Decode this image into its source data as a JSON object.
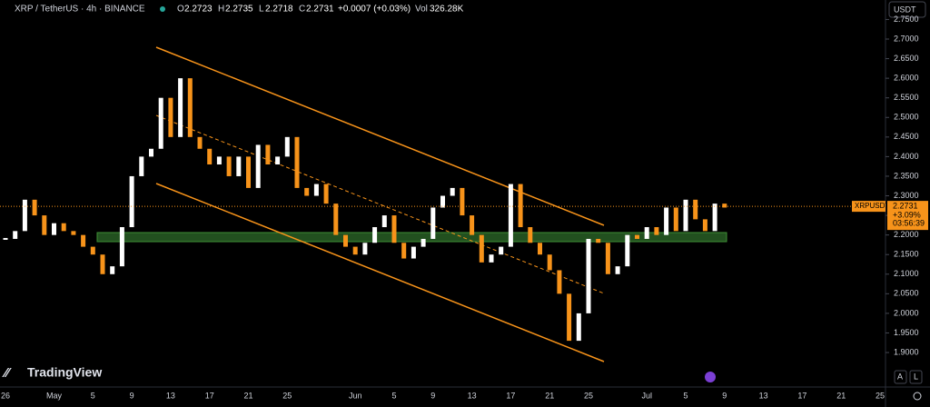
{
  "header": {
    "symbol": "XRP / TetherUS · 4h · BINANCE",
    "o_label": "O",
    "open": "2.2723",
    "h_label": "H",
    "high": "2.2735",
    "l_label": "L",
    "low": "2.2718",
    "c_label": "C",
    "close": "2.2731",
    "change": "+0.0007 (+0.03%)",
    "vol_label": "Vol",
    "volume": "326.28K"
  },
  "currency": "USDT",
  "price_label": {
    "symbol": "XRPUSDT",
    "price": "2.2731",
    "change": "+3.09%",
    "countdown": "03:56:39"
  },
  "last_price": 2.2731,
  "ylim": [
    1.85,
    2.78
  ],
  "yticks": [
    {
      "value": 2.75,
      "label": "2.7500"
    },
    {
      "value": 2.7,
      "label": "2.7000"
    },
    {
      "value": 2.65,
      "label": "2.6500"
    },
    {
      "value": 2.6,
      "label": "2.6000"
    },
    {
      "value": 2.55,
      "label": "2.5500"
    },
    {
      "value": 2.5,
      "label": "2.5000"
    },
    {
      "value": 2.45,
      "label": "2.4500"
    },
    {
      "value": 2.4,
      "label": "2.4000"
    },
    {
      "value": 2.35,
      "label": "2.3500"
    },
    {
      "value": 2.3,
      "label": "2.3000"
    },
    {
      "value": 2.25,
      "label": "2.2500"
    },
    {
      "value": 2.2,
      "label": "2.2000"
    },
    {
      "value": 2.15,
      "label": "2.1500"
    },
    {
      "value": 2.1,
      "label": "2.1000"
    },
    {
      "value": 2.05,
      "label": "2.0500"
    },
    {
      "value": 2.0,
      "label": "2.0000"
    },
    {
      "value": 1.95,
      "label": "1.9500"
    },
    {
      "value": 1.9,
      "label": "1.9000"
    }
  ],
  "time_labels": [
    "26",
    "May",
    "5",
    "9",
    "13",
    "17",
    "21",
    "25",
    "Jun",
    "5",
    "9",
    "13",
    "17",
    "21",
    "25",
    "Jul",
    "5",
    "9",
    "13",
    "17",
    "21",
    "25"
  ],
  "closes": [
    2.19,
    2.21,
    2.29,
    2.25,
    2.2,
    2.23,
    2.21,
    2.2,
    2.17,
    2.15,
    2.1,
    2.12,
    2.22,
    2.35,
    2.4,
    2.42,
    2.55,
    2.45,
    2.6,
    2.45,
    2.42,
    2.38,
    2.4,
    2.35,
    2.4,
    2.32,
    2.43,
    2.38,
    2.4,
    2.45,
    2.32,
    2.3,
    2.33,
    2.28,
    2.2,
    2.17,
    2.15,
    2.18,
    2.22,
    2.25,
    2.18,
    2.14,
    2.17,
    2.19,
    2.27,
    2.3,
    2.32,
    2.25,
    2.2,
    2.13,
    2.15,
    2.17,
    2.33,
    2.22,
    2.18,
    2.15,
    2.11,
    2.05,
    1.93,
    2.0,
    2.19,
    2.18,
    2.1,
    2.12,
    2.2,
    2.19,
    2.22,
    2.2,
    2.27,
    2.21,
    2.29,
    2.24,
    2.21,
    2.28,
    2.27
  ],
  "brand": "TradingView",
  "buttons": [
    "A",
    "L"
  ]
}
